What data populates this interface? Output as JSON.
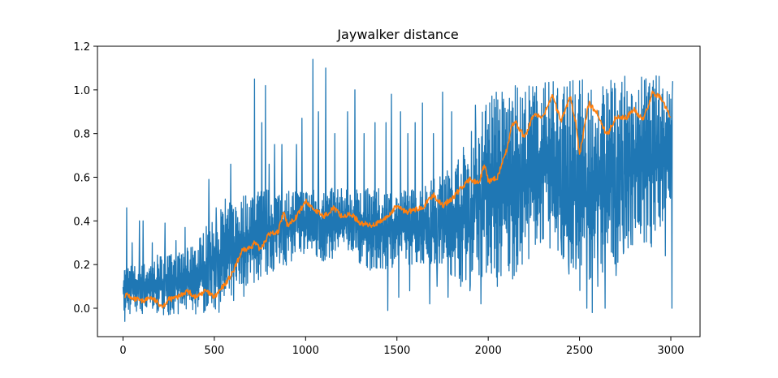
{
  "chart_data": {
    "type": "line",
    "title": "Jaywalker distance",
    "xlabel": "",
    "ylabel": "",
    "xlim": [
      -140,
      3160
    ],
    "ylim": [
      -0.13,
      1.2
    ],
    "xticks": [
      0,
      500,
      1000,
      1500,
      2000,
      2500,
      3000
    ],
    "yticks": [
      0.0,
      0.2,
      0.4,
      0.6,
      0.8,
      1.0,
      1.2
    ],
    "xtick_labels": [
      "0",
      "500",
      "1000",
      "1500",
      "2000",
      "2500",
      "3000"
    ],
    "ytick_labels": [
      "0.0",
      "0.2",
      "0.4",
      "0.6",
      "0.8",
      "1.0",
      "1.2"
    ],
    "grid": false,
    "legend": "none",
    "series": [
      {
        "color": "#1f77b4",
        "x": [
          0,
          100,
          200,
          300,
          400,
          500,
          600,
          700,
          800,
          900,
          1000,
          1100,
          1200,
          1300,
          1400,
          1500,
          1600,
          1700,
          1800,
          1900,
          2000,
          2100,
          2200,
          2300,
          2400,
          2500,
          2600,
          2700,
          2800,
          2900,
          3000
        ],
        "band_low": [
          -0.03,
          -0.03,
          -0.03,
          -0.03,
          -0.03,
          -0.02,
          -0.02,
          0.1,
          0.15,
          0.2,
          0.25,
          0.2,
          0.25,
          0.2,
          0.15,
          0.2,
          0.2,
          0.2,
          0.15,
          0.1,
          0.15,
          0.1,
          0.2,
          0.3,
          0.2,
          0.05,
          0.1,
          0.2,
          0.3,
          0.25,
          0.5
        ],
        "band_high": [
          0.2,
          0.2,
          0.25,
          0.25,
          0.3,
          0.45,
          0.5,
          0.55,
          0.55,
          0.55,
          0.55,
          0.55,
          0.55,
          0.55,
          0.55,
          0.55,
          0.55,
          0.6,
          0.65,
          0.8,
          1.0,
          1.02,
          1.03,
          1.04,
          1.05,
          1.05,
          1.06,
          1.06,
          1.07,
          1.07,
          1.07
        ],
        "spikes": [
          [
            10,
            -0.06
          ],
          [
            20,
            0.46
          ],
          [
            50,
            0.3
          ],
          [
            90,
            0.4
          ],
          [
            110,
            0.4
          ],
          [
            160,
            0.3
          ],
          [
            230,
            0.39
          ],
          [
            290,
            0.31
          ],
          [
            340,
            0.37
          ],
          [
            380,
            0.28
          ],
          [
            420,
            0.32
          ],
          [
            470,
            0.59
          ],
          [
            510,
            0.46
          ],
          [
            560,
            0.5
          ],
          [
            590,
            0.66
          ],
          [
            720,
            1.05
          ],
          [
            760,
            0.85
          ],
          [
            780,
            1.02
          ],
          [
            800,
            0.66
          ],
          [
            830,
            0.75
          ],
          [
            870,
            0.75
          ],
          [
            950,
            0.75
          ],
          [
            980,
            0.87
          ],
          [
            1040,
            1.14
          ],
          [
            1070,
            0.9
          ],
          [
            1110,
            1.1
          ],
          [
            1160,
            0.8
          ],
          [
            1230,
            0.9
          ],
          [
            1270,
            1.0
          ],
          [
            1320,
            0.8
          ],
          [
            1380,
            0.85
          ],
          [
            1440,
            0.85
          ],
          [
            1470,
            0.98
          ],
          [
            1520,
            0.9
          ],
          [
            1560,
            0.8
          ],
          [
            1600,
            0.85
          ],
          [
            1640,
            0.94
          ],
          [
            1700,
            0.8
          ],
          [
            1750,
            0.99
          ],
          [
            1800,
            0.9
          ],
          [
            1850,
            0.98
          ],
          [
            1930,
            0.93
          ],
          [
            1450,
            -0.01
          ],
          [
            1510,
            0.05
          ],
          [
            1570,
            0.08
          ],
          [
            1680,
            0.02
          ],
          [
            1720,
            0.1
          ],
          [
            1780,
            0.05
          ],
          [
            1850,
            0.1
          ],
          [
            1900,
            0.08
          ],
          [
            1960,
            0.02
          ],
          [
            2050,
            0.1
          ],
          [
            2180,
            0.3
          ],
          [
            2250,
            0.4
          ],
          [
            2330,
            0.4
          ],
          [
            2400,
            0.3
          ],
          [
            2440,
            0.2
          ],
          [
            2480,
            0.18
          ],
          [
            2540,
            0.0
          ],
          [
            2570,
            -0.02
          ],
          [
            2600,
            0.1
          ],
          [
            2640,
            0.0
          ],
          [
            2700,
            0.15
          ],
          [
            2740,
            0.25
          ],
          [
            2780,
            0.35
          ],
          [
            2830,
            0.4
          ],
          [
            2970,
            0.24
          ],
          [
            2985,
            0.55
          ],
          [
            3005,
            0.0
          ],
          [
            3010,
            1.04
          ]
        ]
      },
      {
        "color": "#ff7f0e",
        "x": [
          10,
          30,
          50,
          80,
          100,
          150,
          200,
          220,
          250,
          300,
          350,
          400,
          450,
          500,
          550,
          600,
          650,
          700,
          720,
          750,
          800,
          850,
          880,
          900,
          950,
          1000,
          1050,
          1100,
          1150,
          1200,
          1250,
          1300,
          1350,
          1400,
          1450,
          1500,
          1550,
          1600,
          1650,
          1700,
          1750,
          1800,
          1850,
          1900,
          1950,
          1980,
          2000,
          2050,
          2100,
          2130,
          2150,
          2200,
          2250,
          2300,
          2350,
          2380,
          2400,
          2450,
          2480,
          2500,
          2550,
          2600,
          2650,
          2700,
          2750,
          2800,
          2850,
          2900,
          2950,
          2980,
          3000
        ],
        "values": [
          0.06,
          0.06,
          0.04,
          0.04,
          0.03,
          0.05,
          0.02,
          0.01,
          0.04,
          0.05,
          0.08,
          0.05,
          0.08,
          0.05,
          0.1,
          0.16,
          0.26,
          0.28,
          0.3,
          0.27,
          0.34,
          0.35,
          0.44,
          0.38,
          0.42,
          0.49,
          0.45,
          0.42,
          0.46,
          0.42,
          0.43,
          0.39,
          0.38,
          0.39,
          0.42,
          0.47,
          0.44,
          0.45,
          0.47,
          0.52,
          0.47,
          0.5,
          0.55,
          0.59,
          0.57,
          0.66,
          0.58,
          0.6,
          0.72,
          0.84,
          0.85,
          0.78,
          0.89,
          0.87,
          0.98,
          0.9,
          0.86,
          0.97,
          0.85,
          0.7,
          0.94,
          0.89,
          0.79,
          0.88,
          0.87,
          0.91,
          0.86,
          0.99,
          0.96,
          0.9,
          0.88
        ]
      }
    ]
  }
}
